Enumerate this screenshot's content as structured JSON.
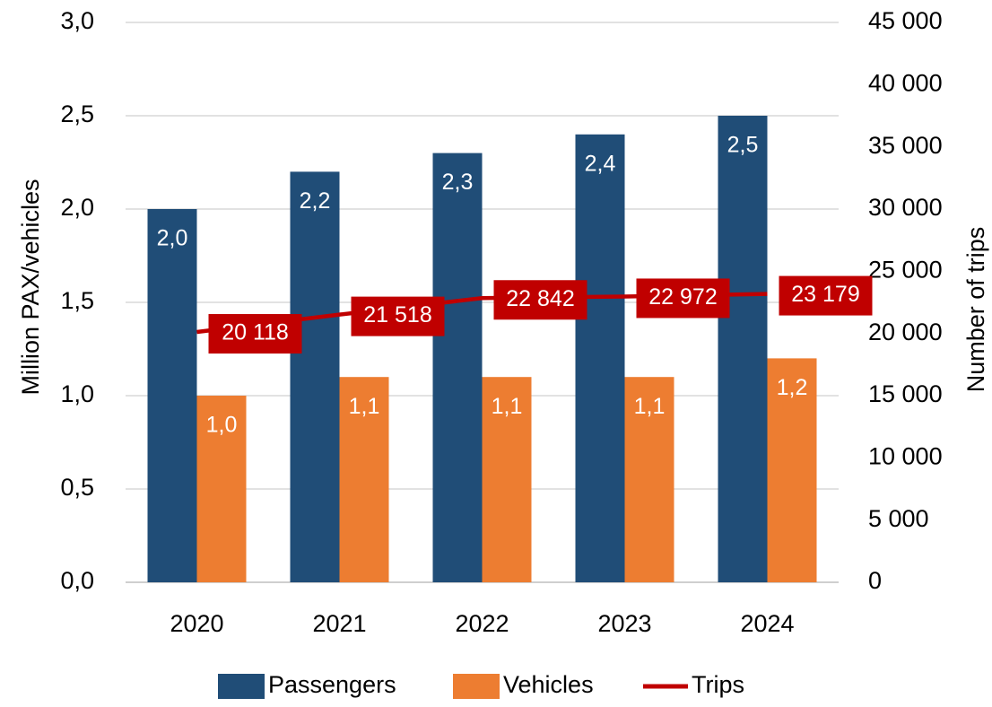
{
  "chart_data": {
    "type": "bar",
    "y_label": "Million PAX/vehicles",
    "y2_label": "Number of trips",
    "categories": [
      "2020",
      "2021",
      "2022",
      "2023",
      "2024"
    ],
    "series": [
      {
        "name": "Passengers",
        "color": "#204d77",
        "type": "bar",
        "values": [
          2.0,
          2.2,
          2.3,
          2.4,
          2.5
        ],
        "value_labels": [
          "2,0",
          "2,2",
          "2,3",
          "2,4",
          "2,5"
        ]
      },
      {
        "name": "Vehicles",
        "color": "#ed7d31",
        "type": "bar",
        "values": [
          1.0,
          1.1,
          1.1,
          1.1,
          1.2
        ],
        "value_labels": [
          "1,0",
          "1,1",
          "1,1",
          "1,1",
          "1,2"
        ]
      },
      {
        "name": "Trips",
        "color": "#c00000",
        "type": "line",
        "axis": "y2",
        "values": [
          20118,
          21518,
          22842,
          22972,
          23179
        ],
        "value_labels": [
          "20 118",
          "21 518",
          "22 842",
          "22 972",
          "23 179"
        ]
      }
    ],
    "ylim": [
      0,
      3
    ],
    "yticks": [
      {
        "value": 0,
        "label": "0,0"
      },
      {
        "value": 0.5,
        "label": "0,5"
      },
      {
        "value": 1,
        "label": "1,0"
      },
      {
        "value": 1.5,
        "label": "1,5"
      },
      {
        "value": 2,
        "label": "2,0"
      },
      {
        "value": 2.5,
        "label": "2,5"
      },
      {
        "value": 3,
        "label": "3,0"
      }
    ],
    "y2lim": [
      0,
      45000
    ],
    "y2ticks": [
      0,
      {
        "value": 5000,
        "label": "5 000"
      },
      {
        "value": 10000,
        "label": "10 000"
      },
      {
        "value": 15000,
        "label": "15 000"
      },
      {
        "value": 20000,
        "label": "20 000"
      },
      {
        "value": 25000,
        "label": "25 000"
      },
      {
        "value": 30000,
        "label": "30 000"
      },
      {
        "value": 35000,
        "label": "35 000"
      },
      {
        "value": 40000,
        "label": "40 000"
      },
      {
        "value": 45000,
        "label": "45 000"
      }
    ],
    "grid": true,
    "legend": "bottom"
  }
}
